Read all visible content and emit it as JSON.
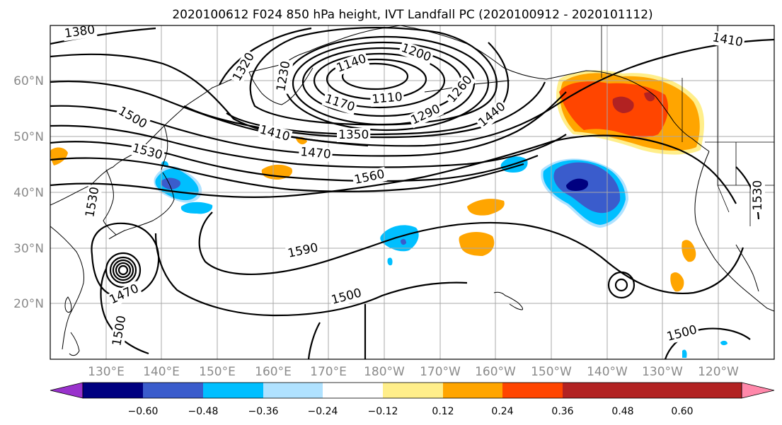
{
  "title": "2020100612 F024 850 hPa height, IVT Landfall PC (2020100912 - 2020101112)",
  "map": {
    "lat_labels": [
      "60°N",
      "50°N",
      "40°N",
      "30°N",
      "20°N"
    ],
    "lon_labels": [
      "130°E",
      "140°E",
      "150°E",
      "160°E",
      "170°E",
      "180°W",
      "170°W",
      "160°W",
      "150°W",
      "140°W",
      "130°W",
      "120°W"
    ],
    "contour_labels": [
      "1380",
      "1320",
      "1230",
      "1140",
      "1200",
      "1170",
      "1110",
      "1260",
      "1290",
      "1410",
      "1350",
      "1440",
      "1470",
      "1500",
      "1530",
      "1560",
      "1590",
      "1410",
      "1530",
      "1500",
      "1470",
      "1500",
      "1500",
      "1530"
    ],
    "colors": {
      "coast": "#000000",
      "grid": "#a8a8a8",
      "contour": "#000000"
    }
  },
  "colorbar": {
    "tick_labels": [
      "−0.60",
      "−0.48",
      "−0.36",
      "−0.24",
      "−0.12",
      "0.12",
      "0.24",
      "0.36",
      "0.48",
      "0.60"
    ],
    "colors": [
      "#9932cc",
      "#000080",
      "#3a5ccc",
      "#00bfff",
      "#b0e2ff",
      "#ffffff",
      "#ffee8a",
      "#ffa500",
      "#ff4500",
      "#b22222",
      "#ff88aa"
    ]
  }
}
